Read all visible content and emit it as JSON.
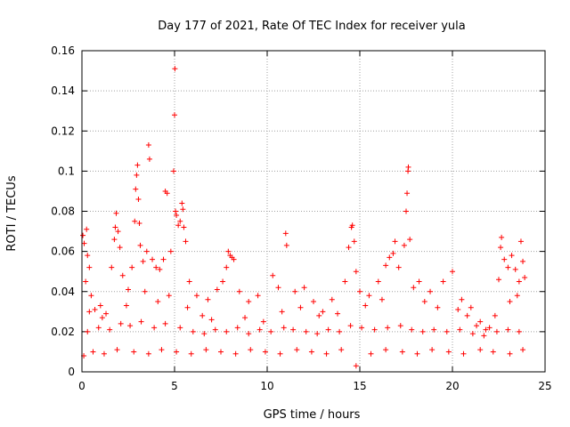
{
  "chart_data": {
    "type": "scatter",
    "title": "Day 177 of 2021, Rate Of TEC Index for receiver yula",
    "xlabel": "GPS time / hours",
    "ylabel": "ROTI / TECUs",
    "xlim": [
      0,
      25
    ],
    "ylim": [
      0,
      0.16
    ],
    "x_ticks": [
      0,
      5,
      10,
      15,
      20,
      25
    ],
    "x_tick_labels": [
      "0",
      "5",
      "10",
      "15",
      "20",
      "25"
    ],
    "y_ticks": [
      0,
      0.02,
      0.04,
      0.06,
      0.08,
      0.1,
      0.12,
      0.14,
      0.16
    ],
    "y_tick_labels": [
      "0",
      "0.02",
      "0.04",
      "0.06",
      "0.08",
      "0.1",
      "0.12",
      "0.14",
      "0.16"
    ],
    "grid": true,
    "marker": "+",
    "color": "#ff0000",
    "series": [
      {
        "name": "ROTI",
        "points": [
          [
            0.05,
            0.068
          ],
          [
            0.12,
            0.064
          ],
          [
            0.25,
            0.071
          ],
          [
            0.3,
            0.058
          ],
          [
            0.2,
            0.045
          ],
          [
            0.4,
            0.052
          ],
          [
            0.5,
            0.038
          ],
          [
            0.7,
            0.031
          ],
          [
            1.0,
            0.033
          ],
          [
            1.3,
            0.029
          ],
          [
            1.6,
            0.052
          ],
          [
            1.75,
            0.066
          ],
          [
            1.8,
            0.072
          ],
          [
            1.85,
            0.079
          ],
          [
            1.95,
            0.07
          ],
          [
            2.05,
            0.062
          ],
          [
            2.2,
            0.048
          ],
          [
            2.5,
            0.041
          ],
          [
            2.7,
            0.052
          ],
          [
            2.85,
            0.075
          ],
          [
            2.9,
            0.091
          ],
          [
            2.95,
            0.098
          ],
          [
            3.0,
            0.103
          ],
          [
            3.05,
            0.086
          ],
          [
            3.1,
            0.074
          ],
          [
            3.15,
            0.063
          ],
          [
            3.3,
            0.055
          ],
          [
            3.5,
            0.06
          ],
          [
            3.6,
            0.113
          ],
          [
            3.65,
            0.106
          ],
          [
            3.8,
            0.056
          ],
          [
            4.0,
            0.052
          ],
          [
            4.2,
            0.051
          ],
          [
            4.4,
            0.056
          ],
          [
            4.5,
            0.09
          ],
          [
            4.6,
            0.089
          ],
          [
            4.8,
            0.06
          ],
          [
            4.95,
            0.1
          ],
          [
            5.0,
            0.128
          ],
          [
            5.02,
            0.151
          ],
          [
            5.05,
            0.08
          ],
          [
            5.1,
            0.078
          ],
          [
            5.2,
            0.073
          ],
          [
            5.3,
            0.075
          ],
          [
            5.4,
            0.084
          ],
          [
            5.45,
            0.081
          ],
          [
            5.5,
            0.072
          ],
          [
            5.6,
            0.065
          ],
          [
            5.8,
            0.045
          ],
          [
            6.2,
            0.038
          ],
          [
            6.8,
            0.036
          ],
          [
            7.3,
            0.041
          ],
          [
            7.6,
            0.045
          ],
          [
            7.8,
            0.052
          ],
          [
            7.9,
            0.06
          ],
          [
            8.0,
            0.058
          ],
          [
            8.1,
            0.057
          ],
          [
            8.2,
            0.056
          ],
          [
            8.5,
            0.04
          ],
          [
            9.0,
            0.035
          ],
          [
            9.5,
            0.038
          ],
          [
            10.3,
            0.048
          ],
          [
            10.6,
            0.042
          ],
          [
            11.0,
            0.069
          ],
          [
            11.05,
            0.063
          ],
          [
            11.5,
            0.04
          ],
          [
            12.0,
            0.042
          ],
          [
            12.5,
            0.035
          ],
          [
            13.0,
            0.03
          ],
          [
            13.5,
            0.036
          ],
          [
            14.2,
            0.045
          ],
          [
            14.4,
            0.062
          ],
          [
            14.55,
            0.072
          ],
          [
            14.6,
            0.073
          ],
          [
            14.7,
            0.065
          ],
          [
            14.8,
            0.05
          ],
          [
            15.0,
            0.04
          ],
          [
            15.5,
            0.038
          ],
          [
            16.0,
            0.045
          ],
          [
            16.4,
            0.053
          ],
          [
            16.6,
            0.057
          ],
          [
            16.8,
            0.059
          ],
          [
            16.9,
            0.065
          ],
          [
            17.1,
            0.052
          ],
          [
            17.4,
            0.063
          ],
          [
            17.5,
            0.08
          ],
          [
            17.55,
            0.089
          ],
          [
            17.6,
            0.1
          ],
          [
            17.62,
            0.102
          ],
          [
            17.7,
            0.066
          ],
          [
            17.9,
            0.042
          ],
          [
            18.2,
            0.045
          ],
          [
            18.8,
            0.04
          ],
          [
            19.5,
            0.045
          ],
          [
            20.0,
            0.05
          ],
          [
            20.5,
            0.036
          ],
          [
            21.0,
            0.032
          ],
          [
            21.5,
            0.025
          ],
          [
            22.0,
            0.022
          ],
          [
            22.5,
            0.046
          ],
          [
            22.6,
            0.062
          ],
          [
            22.65,
            0.067
          ],
          [
            22.8,
            0.056
          ],
          [
            23.0,
            0.052
          ],
          [
            23.2,
            0.058
          ],
          [
            23.4,
            0.051
          ],
          [
            23.6,
            0.045
          ],
          [
            23.7,
            0.065
          ],
          [
            23.8,
            0.055
          ],
          [
            23.9,
            0.047
          ],
          [
            0.4,
            0.03
          ],
          [
            1.1,
            0.027
          ],
          [
            2.4,
            0.033
          ],
          [
            3.4,
            0.04
          ],
          [
            4.1,
            0.035
          ],
          [
            4.7,
            0.038
          ],
          [
            5.7,
            0.032
          ],
          [
            6.5,
            0.028
          ],
          [
            7.0,
            0.026
          ],
          [
            8.8,
            0.027
          ],
          [
            9.8,
            0.025
          ],
          [
            10.8,
            0.03
          ],
          [
            11.8,
            0.032
          ],
          [
            12.8,
            0.028
          ],
          [
            13.8,
            0.029
          ],
          [
            15.3,
            0.033
          ],
          [
            16.2,
            0.036
          ],
          [
            18.5,
            0.035
          ],
          [
            19.2,
            0.032
          ],
          [
            20.3,
            0.031
          ],
          [
            20.8,
            0.028
          ],
          [
            21.3,
            0.023
          ],
          [
            21.8,
            0.021
          ],
          [
            22.3,
            0.028
          ],
          [
            23.1,
            0.035
          ],
          [
            23.5,
            0.038
          ],
          [
            0.3,
            0.02
          ],
          [
            0.9,
            0.022
          ],
          [
            1.5,
            0.021
          ],
          [
            2.1,
            0.024
          ],
          [
            2.6,
            0.023
          ],
          [
            3.2,
            0.025
          ],
          [
            3.9,
            0.022
          ],
          [
            4.5,
            0.024
          ],
          [
            5.3,
            0.022
          ],
          [
            6.0,
            0.02
          ],
          [
            6.6,
            0.019
          ],
          [
            7.2,
            0.021
          ],
          [
            7.8,
            0.02
          ],
          [
            8.4,
            0.022
          ],
          [
            9.0,
            0.019
          ],
          [
            9.6,
            0.021
          ],
          [
            10.2,
            0.02
          ],
          [
            10.9,
            0.022
          ],
          [
            11.4,
            0.021
          ],
          [
            12.1,
            0.02
          ],
          [
            12.7,
            0.019
          ],
          [
            13.3,
            0.021
          ],
          [
            13.9,
            0.02
          ],
          [
            14.5,
            0.023
          ],
          [
            15.1,
            0.022
          ],
          [
            15.8,
            0.021
          ],
          [
            16.5,
            0.022
          ],
          [
            17.2,
            0.023
          ],
          [
            17.8,
            0.021
          ],
          [
            18.4,
            0.02
          ],
          [
            19.0,
            0.021
          ],
          [
            19.7,
            0.02
          ],
          [
            20.4,
            0.021
          ],
          [
            21.1,
            0.019
          ],
          [
            21.7,
            0.018
          ],
          [
            22.4,
            0.02
          ],
          [
            23.0,
            0.021
          ],
          [
            23.6,
            0.02
          ],
          [
            0.1,
            0.008
          ],
          [
            0.6,
            0.01
          ],
          [
            1.2,
            0.009
          ],
          [
            1.9,
            0.011
          ],
          [
            2.8,
            0.01
          ],
          [
            3.6,
            0.009
          ],
          [
            4.3,
            0.011
          ],
          [
            5.1,
            0.01
          ],
          [
            5.9,
            0.009
          ],
          [
            6.7,
            0.011
          ],
          [
            7.5,
            0.01
          ],
          [
            8.3,
            0.009
          ],
          [
            9.1,
            0.011
          ],
          [
            9.9,
            0.01
          ],
          [
            10.7,
            0.009
          ],
          [
            11.6,
            0.011
          ],
          [
            12.4,
            0.01
          ],
          [
            13.2,
            0.009
          ],
          [
            14.0,
            0.011
          ],
          [
            14.8,
            0.003
          ],
          [
            15.6,
            0.009
          ],
          [
            16.4,
            0.011
          ],
          [
            17.3,
            0.01
          ],
          [
            18.1,
            0.009
          ],
          [
            18.9,
            0.011
          ],
          [
            19.8,
            0.01
          ],
          [
            20.6,
            0.009
          ],
          [
            21.5,
            0.011
          ],
          [
            22.2,
            0.01
          ],
          [
            23.1,
            0.009
          ],
          [
            23.8,
            0.011
          ]
        ]
      }
    ]
  }
}
